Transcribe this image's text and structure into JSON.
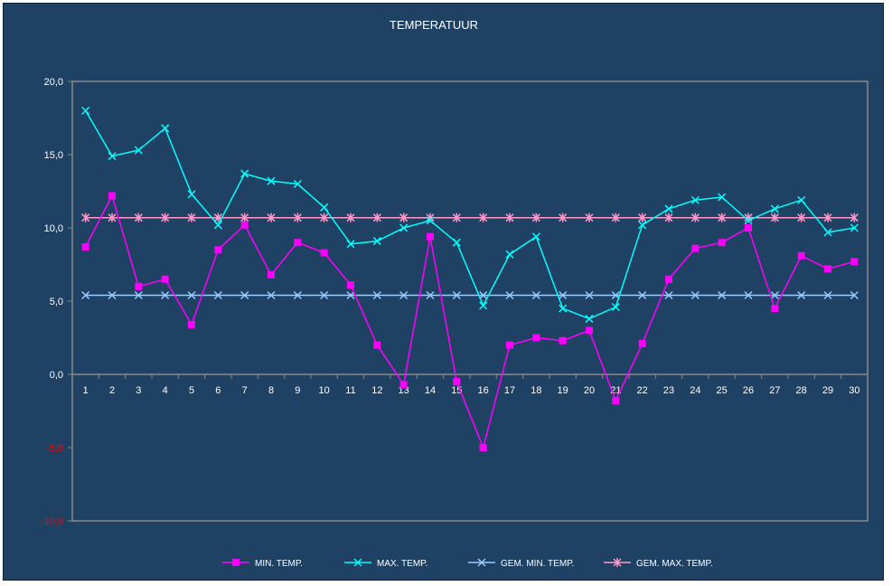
{
  "chart_data": {
    "type": "line",
    "title": "TEMPERATUUR",
    "xlabel": "",
    "ylabel": "",
    "ylim": [
      -10,
      20
    ],
    "y_ticks": [
      "20,0",
      "15,0",
      "10,0",
      "5,0",
      "0,0",
      "-5,0",
      "-10,0"
    ],
    "y_tick_values": [
      20,
      15,
      10,
      5,
      0,
      -5,
      -10
    ],
    "negative_tick_color": "#ff0000",
    "categories": [
      "1",
      "2",
      "3",
      "4",
      "5",
      "6",
      "7",
      "8",
      "9",
      "10",
      "11",
      "12",
      "13",
      "14",
      "15",
      "16",
      "17",
      "18",
      "19",
      "20",
      "21",
      "22",
      "23",
      "24",
      "25",
      "26",
      "27",
      "28",
      "29",
      "30"
    ],
    "grid": false,
    "legend_position": "bottom",
    "series": [
      {
        "name": "MIN. TEMP.",
        "color": "#ff00ff",
        "marker": "square",
        "values": [
          8.7,
          12.2,
          6.0,
          6.5,
          3.4,
          8.5,
          10.2,
          6.8,
          9.0,
          8.3,
          6.1,
          2.0,
          -0.7,
          9.4,
          -0.5,
          -5.0,
          2.0,
          2.5,
          2.3,
          3.0,
          -1.8,
          2.1,
          6.5,
          8.6,
          9.0,
          10.0,
          4.5,
          8.1,
          7.2,
          7.7
        ]
      },
      {
        "name": "MAX. TEMP.",
        "color": "#00ffff",
        "marker": "x",
        "values": [
          18.0,
          14.9,
          15.3,
          16.8,
          12.3,
          10.2,
          13.7,
          13.2,
          13.0,
          11.4,
          8.9,
          9.1,
          10.0,
          10.5,
          9.0,
          4.7,
          8.2,
          9.4,
          4.5,
          3.8,
          4.6,
          10.2,
          11.3,
          11.9,
          12.1,
          10.5,
          11.3,
          11.9,
          9.7,
          10.0
        ]
      },
      {
        "name": "GEM. MIN. TEMP.",
        "color": "#99ccff",
        "marker": "x",
        "values": [
          5.4,
          5.4,
          5.4,
          5.4,
          5.4,
          5.4,
          5.4,
          5.4,
          5.4,
          5.4,
          5.4,
          5.4,
          5.4,
          5.4,
          5.4,
          5.4,
          5.4,
          5.4,
          5.4,
          5.4,
          5.4,
          5.4,
          5.4,
          5.4,
          5.4,
          5.4,
          5.4,
          5.4,
          5.4,
          5.4
        ]
      },
      {
        "name": "GEM. MAX. TEMP.",
        "color": "#ff99cc",
        "marker": "star",
        "values": [
          10.7,
          10.7,
          10.7,
          10.7,
          10.7,
          10.7,
          10.7,
          10.7,
          10.7,
          10.7,
          10.7,
          10.7,
          10.7,
          10.7,
          10.7,
          10.7,
          10.7,
          10.7,
          10.7,
          10.7,
          10.7,
          10.7,
          10.7,
          10.7,
          10.7,
          10.7,
          10.7,
          10.7,
          10.7,
          10.7
        ]
      }
    ]
  }
}
